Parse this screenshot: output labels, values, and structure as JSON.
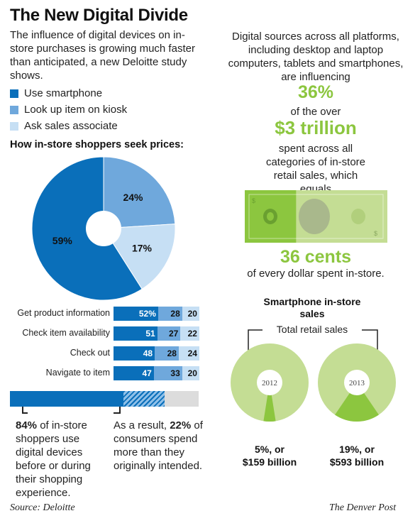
{
  "title": "The New Digital Divide",
  "intro": "The influence of digital devices on in-store purchases is growing much faster than anticipated, a new Deloitte study shows.",
  "legend": [
    {
      "label": "Use smartphone",
      "color": "#0a6fba"
    },
    {
      "label": "Look up item on kiosk",
      "color": "#6fa8dc"
    },
    {
      "label": "Ask sales associate",
      "color": "#c6dff4"
    }
  ],
  "chart_data": [
    {
      "type": "pie",
      "title": "How in-store shoppers seek prices:",
      "slices": [
        {
          "label": "Use smartphone",
          "value": 59,
          "display": "59%"
        },
        {
          "label": "Look up item on kiosk",
          "value": 24,
          "display": "24%"
        },
        {
          "label": "Ask sales associate",
          "value": 17,
          "display": "17%"
        }
      ]
    },
    {
      "type": "bar",
      "stacked": true,
      "orientation": "horizontal",
      "categories": [
        "Get product information",
        "Check item availability",
        "Check out",
        "Navigate to item"
      ],
      "series": [
        {
          "name": "Use smartphone",
          "values": [
            52,
            51,
            48,
            47
          ]
        },
        {
          "name": "Look up item on kiosk",
          "values": [
            28,
            27,
            28,
            33
          ]
        },
        {
          "name": "Ask sales associate",
          "values": [
            20,
            22,
            24,
            20
          ]
        }
      ],
      "value_labels": [
        [
          "52%",
          "28",
          "20"
        ],
        [
          "51",
          "27",
          "22"
        ],
        [
          "48",
          "28",
          "24"
        ],
        [
          "47",
          "33",
          "20"
        ]
      ]
    },
    {
      "type": "pie",
      "title": "Smartphone in-store sales",
      "subtitle": "Total retail sales",
      "donuts": [
        {
          "year": "2012",
          "share": 5,
          "label_line1": "5%, or",
          "label_line2": "$159 billion"
        },
        {
          "year": "2013",
          "share": 19,
          "label_line1": "19%, or",
          "label_line2": "$593 billion"
        }
      ]
    }
  ],
  "progress": {
    "digital_share": 84,
    "spend_more_share": 22
  },
  "notes": {
    "n84_bold": "84%",
    "n84_rest": " of in-store shoppers use digital devices before or during their shopping experience.",
    "n22_pre": "As a result, ",
    "n22_bold": "22%",
    "n22_rest": " of consumers spend more than they originally intended."
  },
  "right": {
    "text1": "Digital sources across all platforms, including desktop and laptop computers, tablets and smartphones, are influencing",
    "pct": "36%",
    "text2": "of the over",
    "trillion": "$3 trillion",
    "text3": "spent across all categories of in-store retail sales, which equals",
    "cents": "36 cents",
    "text4": "of every dollar spent in-store.",
    "bill_fraction": 36
  },
  "colors": {
    "smartphone": "#0a6fba",
    "kiosk": "#6fa8dc",
    "associate": "#c6dff4",
    "green": "#8cc63f",
    "light_green": "#c4dd94"
  },
  "footer": {
    "source": "Source: Deloitte",
    "credit": "The Denver Post"
  }
}
